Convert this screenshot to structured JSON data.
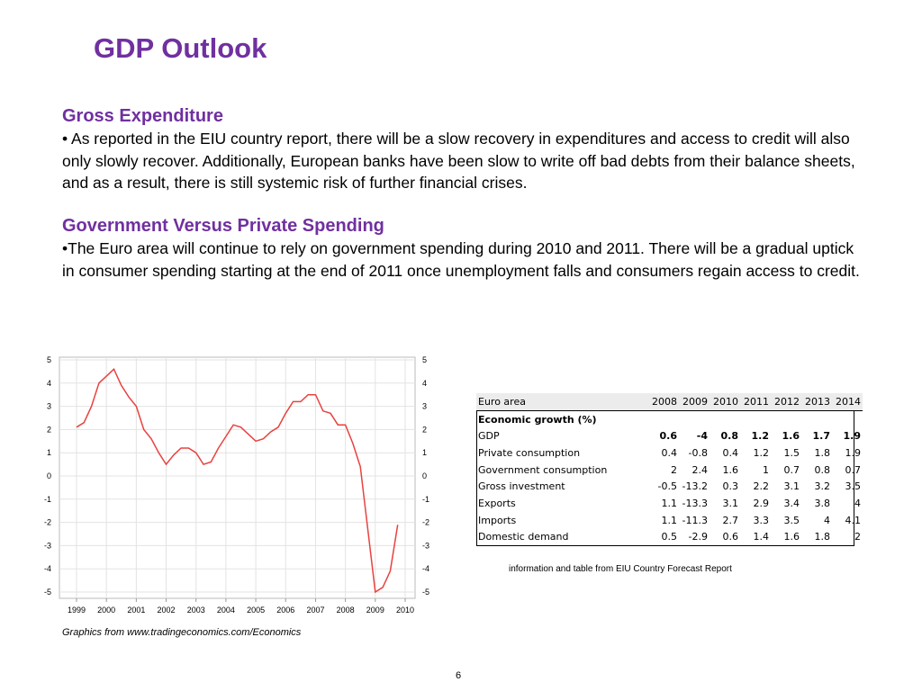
{
  "slide": {
    "title": "GDP Outlook",
    "page_number": "6"
  },
  "sections": [
    {
      "heading": "Gross Expenditure",
      "body": "• As reported in the EIU country report, there will be a slow recovery in expenditures and access to credit will also only slowly recover. Additionally, European banks have been slow to write off bad debts from their balance sheets, and as a result, there is still systemic risk of further financial crises."
    },
    {
      "heading": "Government Versus Private Spending",
      "body": "•The Euro area will continue to rely on government spending during 2010 and 2011. There will be a gradual uptick in consumer spending starting at the end of 2011 once unemployment falls and consumers regain access to credit."
    }
  ],
  "chart_data": {
    "type": "line",
    "x_tick_labels": [
      "1999",
      "2000",
      "2001",
      "2002",
      "2003",
      "2004",
      "2005",
      "2006",
      "2007",
      "2008",
      "2009",
      "2010"
    ],
    "y_tick_labels": [
      "5",
      "4",
      "3",
      "2",
      "1",
      "0",
      "-1",
      "-2",
      "-3",
      "-4",
      "-5"
    ],
    "ylim": [
      -5,
      5
    ],
    "grid": true,
    "series_color": "#e8423f",
    "x": [
      1999.0,
      1999.25,
      1999.5,
      1999.75,
      2000.0,
      2000.25,
      2000.5,
      2000.75,
      2001.0,
      2001.25,
      2001.5,
      2001.75,
      2002.0,
      2002.25,
      2002.5,
      2002.75,
      2003.0,
      2003.25,
      2003.5,
      2003.75,
      2004.0,
      2004.25,
      2004.5,
      2004.75,
      2005.0,
      2005.25,
      2005.5,
      2005.75,
      2006.0,
      2006.25,
      2006.5,
      2006.75,
      2007.0,
      2007.25,
      2007.5,
      2007.75,
      2008.0,
      2008.25,
      2008.5,
      2008.75,
      2009.0,
      2009.25,
      2009.5,
      2009.75
    ],
    "values": [
      2.1,
      2.3,
      3.0,
      4.0,
      4.3,
      4.6,
      3.9,
      3.4,
      3.0,
      2.0,
      1.6,
      1.0,
      0.5,
      0.9,
      1.2,
      1.2,
      1.0,
      0.5,
      0.6,
      1.2,
      1.7,
      2.2,
      2.1,
      1.8,
      1.5,
      1.6,
      1.9,
      2.1,
      2.7,
      3.2,
      3.2,
      3.5,
      3.5,
      2.8,
      2.7,
      2.2,
      2.2,
      1.4,
      0.4,
      -2.3,
      -5.0,
      -4.8,
      -4.1,
      -2.1
    ]
  },
  "chart_source": "Graphics from www.tradingeconomics.com/Economics",
  "table": {
    "corner": "Euro area",
    "years": [
      "2008",
      "2009",
      "2010",
      "2011",
      "2012",
      "2013",
      "2014"
    ],
    "section_label": "Economic growth (%)",
    "rows": [
      {
        "label": "GDP",
        "values": [
          "0.6",
          "-4",
          "0.8",
          "1.2",
          "1.6",
          "1.7",
          "1.9"
        ]
      },
      {
        "label": "Private consumption",
        "values": [
          "0.4",
          "-0.8",
          "0.4",
          "1.2",
          "1.5",
          "1.8",
          "1.9"
        ]
      },
      {
        "label": "Government consumption",
        "values": [
          "2",
          "2.4",
          "1.6",
          "1",
          "0.7",
          "0.8",
          "0.7"
        ]
      },
      {
        "label": "Gross investment",
        "values": [
          "-0.5",
          "-13.2",
          "0.3",
          "2.2",
          "3.1",
          "3.2",
          "3.5"
        ]
      },
      {
        "label": "Exports",
        "values": [
          "1.1",
          "-13.3",
          "3.1",
          "2.9",
          "3.4",
          "3.8",
          "4"
        ]
      },
      {
        "label": "Imports",
        "values": [
          "1.1",
          "-11.3",
          "2.7",
          "3.3",
          "3.5",
          "4",
          "4.1"
        ]
      },
      {
        "label": "Domestic demand",
        "values": [
          "0.5",
          "-2.9",
          "0.6",
          "1.4",
          "1.6",
          "1.8",
          "2"
        ]
      }
    ],
    "note": "information and  table  from EIU Country Forecast  Report"
  }
}
